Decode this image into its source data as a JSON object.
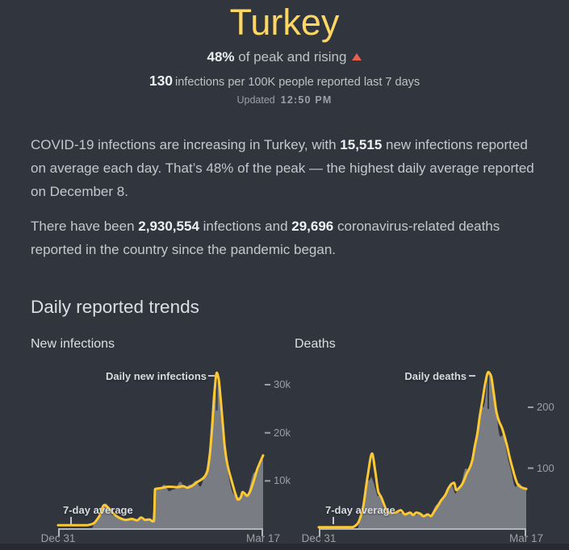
{
  "colors": {
    "background": "#31353e",
    "title_yellow": "#fdd663",
    "line_yellow": "#fcc934",
    "area_gray": "#7d8187",
    "rising_red": "#e8604c",
    "axis_gray": "#b3b7bd"
  },
  "header": {
    "title": "Turkey",
    "peak_stat": {
      "value": "48%",
      "text": " of peak and rising",
      "trend_icon": "rising-triangle-icon"
    },
    "rate_stat": {
      "value": "130",
      "text": "infections per 100K people reported last 7 days"
    },
    "updated_label": "Updated",
    "updated_time": "12:50 PM"
  },
  "summary": {
    "p1_before": "COVID-19 infections are increasing in Turkey, with ",
    "p1_bold": "15,515",
    "p1_after": " new infections reported on average each day. That’s 48% of the peak — the highest daily average reported on December 8.",
    "p2_before": "There have been ",
    "p2_bold1": "2,930,554",
    "p2_mid": " infections and ",
    "p2_bold2": "29,696",
    "p2_after": " coronavirus-related deaths reported in the country since the pandemic began."
  },
  "trends": {
    "section_title": "Daily reported trends"
  },
  "chart_data": [
    {
      "type": "area",
      "title": "New infections",
      "annotation_peak": "Daily new infections",
      "annotation_avg": "7-day average",
      "x_start_label": "Dec 31",
      "x_end_label": "Mar 17",
      "ylim": [
        0,
        34000
      ],
      "yticks": [
        {
          "value": 10000,
          "label": "10k"
        },
        {
          "value": 20000,
          "label": "20k"
        },
        {
          "value": 30000,
          "label": "30k"
        }
      ],
      "series": [
        {
          "name": "7-day average",
          "points": [
            [
              0,
              800
            ],
            [
              0.14,
              800
            ],
            [
              0.17,
              1100
            ],
            [
              0.2,
              2600
            ],
            [
              0.225,
              5000
            ],
            [
              0.245,
              4400
            ],
            [
              0.27,
              3200
            ],
            [
              0.3,
              2300
            ],
            [
              0.33,
              1900
            ],
            [
              0.36,
              2100
            ],
            [
              0.385,
              1800
            ],
            [
              0.405,
              2400
            ],
            [
              0.425,
              1900
            ],
            [
              0.445,
              2000
            ],
            [
              0.462,
              1600
            ],
            [
              0.468,
              1700
            ],
            [
              0.473,
              8300
            ],
            [
              0.5,
              8500
            ],
            [
              0.54,
              8800
            ],
            [
              0.58,
              8700
            ],
            [
              0.61,
              8900
            ],
            [
              0.63,
              8600
            ],
            [
              0.655,
              9000
            ],
            [
              0.68,
              9800
            ],
            [
              0.7,
              10300
            ],
            [
              0.715,
              10900
            ],
            [
              0.728,
              12000
            ],
            [
              0.74,
              15500
            ],
            [
              0.752,
              21500
            ],
            [
              0.763,
              28500
            ],
            [
              0.774,
              32500
            ],
            [
              0.783,
              31200
            ],
            [
              0.793,
              27000
            ],
            [
              0.802,
              22500
            ],
            [
              0.812,
              17500
            ],
            [
              0.822,
              14300
            ],
            [
              0.83,
              12600
            ],
            [
              0.84,
              11000
            ],
            [
              0.852,
              9200
            ],
            [
              0.865,
              7300
            ],
            [
              0.878,
              6100
            ],
            [
              0.89,
              6500
            ],
            [
              0.9,
              7700
            ],
            [
              0.912,
              7300
            ],
            [
              0.922,
              6900
            ],
            [
              0.932,
              7400
            ],
            [
              0.952,
              9700
            ],
            [
              0.972,
              12500
            ],
            [
              1,
              15300
            ]
          ]
        }
      ]
    },
    {
      "type": "area",
      "title": "Deaths",
      "annotation_peak": "Daily deaths",
      "annotation_avg": "7-day average",
      "x_start_label": "Dec 31",
      "x_end_label": "Mar 17",
      "ylim": [
        0,
        270
      ],
      "yticks": [
        {
          "value": 100,
          "label": "100"
        },
        {
          "value": 200,
          "label": "200"
        }
      ],
      "series": [
        {
          "name": "7-day average",
          "points": [
            [
              0,
              3
            ],
            [
              0.16,
              3
            ],
            [
              0.185,
              8
            ],
            [
              0.21,
              30
            ],
            [
              0.235,
              86
            ],
            [
              0.257,
              124
            ],
            [
              0.272,
              95
            ],
            [
              0.288,
              60
            ],
            [
              0.3,
              53
            ],
            [
              0.315,
              40
            ],
            [
              0.33,
              29
            ],
            [
              0.35,
              26
            ],
            [
              0.37,
              27
            ],
            [
              0.395,
              31
            ],
            [
              0.415,
              24
            ],
            [
              0.44,
              27
            ],
            [
              0.455,
              23
            ],
            [
              0.47,
              27
            ],
            [
              0.49,
              25
            ],
            [
              0.505,
              21
            ],
            [
              0.525,
              24
            ],
            [
              0.54,
              21
            ],
            [
              0.555,
              28
            ],
            [
              0.57,
              36
            ],
            [
              0.59,
              47
            ],
            [
              0.61,
              56
            ],
            [
              0.625,
              67
            ],
            [
              0.64,
              74
            ],
            [
              0.652,
              76
            ],
            [
              0.663,
              64
            ],
            [
              0.675,
              67
            ],
            [
              0.688,
              72
            ],
            [
              0.7,
              80
            ],
            [
              0.713,
              91
            ],
            [
              0.727,
              100
            ],
            [
              0.74,
              113
            ],
            [
              0.752,
              136
            ],
            [
              0.765,
              158
            ],
            [
              0.776,
              185
            ],
            [
              0.79,
              213
            ],
            [
              0.804,
              242
            ],
            [
              0.817,
              258
            ],
            [
              0.83,
              252
            ],
            [
              0.843,
              224
            ],
            [
              0.856,
              193
            ],
            [
              0.87,
              176
            ],
            [
              0.882,
              167
            ],
            [
              0.895,
              153
            ],
            [
              0.908,
              136
            ],
            [
              0.92,
              118
            ],
            [
              0.934,
              100
            ],
            [
              0.947,
              84
            ],
            [
              0.96,
              73
            ],
            [
              0.974,
              69
            ],
            [
              0.987,
              67
            ],
            [
              1,
              66
            ]
          ]
        }
      ]
    }
  ]
}
